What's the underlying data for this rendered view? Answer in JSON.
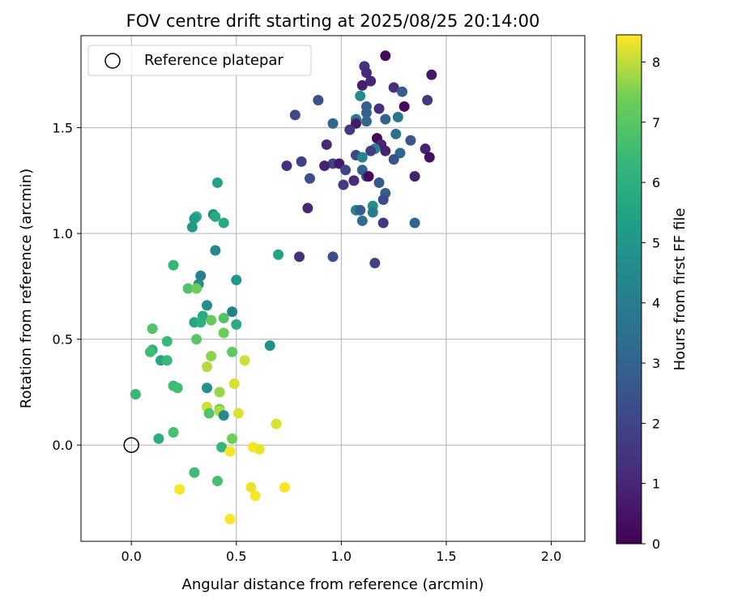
{
  "chart_data": {
    "type": "scatter",
    "title": "FOV centre drift starting at 2025/08/25 20:14:00",
    "xlabel": "Angular distance from reference (arcmin)",
    "ylabel": "Rotation from reference (arcmin)",
    "xlim": [
      -0.24,
      2.16
    ],
    "ylim": [
      -0.455,
      1.935
    ],
    "xticks": [
      0.0,
      0.5,
      1.0,
      1.5,
      2.0
    ],
    "xtick_labels": [
      "0.0",
      "0.5",
      "1.0",
      "1.5",
      "2.0"
    ],
    "yticks": [
      0.0,
      0.5,
      1.0,
      1.5
    ],
    "ytick_labels": [
      "0.0",
      "0.5",
      "1.0",
      "1.5"
    ],
    "grid": true,
    "legend": {
      "position": "top-left",
      "entries": [
        "Reference platepar"
      ]
    },
    "reference_point": {
      "x": 0.0,
      "y": 0.0,
      "label": "Reference platepar"
    },
    "colorbar": {
      "label": "Hours from first FF file",
      "colormap": "viridis",
      "range": [
        0,
        8.45
      ],
      "ticks": [
        0,
        1,
        2,
        3,
        4,
        5,
        6,
        7,
        8
      ],
      "tick_labels": [
        "0",
        "1",
        "2",
        "3",
        "4",
        "5",
        "6",
        "7",
        "8"
      ]
    },
    "points": [
      {
        "x": 1.21,
        "y": 1.84,
        "c": 0.2
      },
      {
        "x": 1.43,
        "y": 1.75,
        "c": 0.6
      },
      {
        "x": 1.11,
        "y": 1.79,
        "c": 1.4
      },
      {
        "x": 1.12,
        "y": 1.76,
        "c": 1.2
      },
      {
        "x": 1.14,
        "y": 1.72,
        "c": 1.0
      },
      {
        "x": 1.1,
        "y": 1.7,
        "c": 0.8
      },
      {
        "x": 1.25,
        "y": 1.69,
        "c": 1.3
      },
      {
        "x": 1.29,
        "y": 1.67,
        "c": 2.8
      },
      {
        "x": 1.09,
        "y": 1.65,
        "c": 4.6
      },
      {
        "x": 1.41,
        "y": 1.63,
        "c": 1.5
      },
      {
        "x": 0.89,
        "y": 1.63,
        "c": 2.4
      },
      {
        "x": 1.12,
        "y": 1.6,
        "c": 2.8
      },
      {
        "x": 1.3,
        "y": 1.6,
        "c": 0.3
      },
      {
        "x": 1.18,
        "y": 1.59,
        "c": 1.3
      },
      {
        "x": 0.78,
        "y": 1.56,
        "c": 2.2
      },
      {
        "x": 1.12,
        "y": 1.57,
        "c": 3.0
      },
      {
        "x": 1.21,
        "y": 1.54,
        "c": 3.0
      },
      {
        "x": 1.27,
        "y": 1.55,
        "c": 3.7
      },
      {
        "x": 1.07,
        "y": 1.54,
        "c": 3.9
      },
      {
        "x": 1.12,
        "y": 1.53,
        "c": 3.1
      },
      {
        "x": 0.96,
        "y": 1.52,
        "c": 3.2
      },
      {
        "x": 1.07,
        "y": 1.52,
        "c": 0.7
      },
      {
        "x": 1.04,
        "y": 1.49,
        "c": 1.6
      },
      {
        "x": 1.26,
        "y": 1.47,
        "c": 3.5
      },
      {
        "x": 1.33,
        "y": 1.44,
        "c": 2.6
      },
      {
        "x": 1.17,
        "y": 1.45,
        "c": 0.2
      },
      {
        "x": 1.19,
        "y": 1.42,
        "c": 1.0
      },
      {
        "x": 1.16,
        "y": 1.4,
        "c": 4.2
      },
      {
        "x": 1.14,
        "y": 1.39,
        "c": 1.7
      },
      {
        "x": 1.21,
        "y": 1.39,
        "c": 0.9
      },
      {
        "x": 1.4,
        "y": 1.4,
        "c": 0.9
      },
      {
        "x": 0.93,
        "y": 1.42,
        "c": 1.1
      },
      {
        "x": 1.28,
        "y": 1.38,
        "c": 3.2
      },
      {
        "x": 1.07,
        "y": 1.37,
        "c": 2.0
      },
      {
        "x": 1.42,
        "y": 1.36,
        "c": 0.4
      },
      {
        "x": 1.25,
        "y": 1.35,
        "c": 2.4
      },
      {
        "x": 1.1,
        "y": 1.36,
        "c": 4.3
      },
      {
        "x": 0.96,
        "y": 1.33,
        "c": 2.0
      },
      {
        "x": 0.99,
        "y": 1.33,
        "c": 0.6
      },
      {
        "x": 0.92,
        "y": 1.32,
        "c": 0.9
      },
      {
        "x": 0.81,
        "y": 1.34,
        "c": 1.9
      },
      {
        "x": 0.74,
        "y": 1.32,
        "c": 1.3
      },
      {
        "x": 1.02,
        "y": 1.3,
        "c": 2.0
      },
      {
        "x": 1.1,
        "y": 1.3,
        "c": 3.0
      },
      {
        "x": 1.12,
        "y": 1.27,
        "c": 2.5
      },
      {
        "x": 1.13,
        "y": 1.27,
        "c": 0.3
      },
      {
        "x": 1.35,
        "y": 1.27,
        "c": 0.8
      },
      {
        "x": 0.85,
        "y": 1.26,
        "c": 2.3
      },
      {
        "x": 1.06,
        "y": 1.25,
        "c": 1.2
      },
      {
        "x": 1.18,
        "y": 1.24,
        "c": 2.7
      },
      {
        "x": 1.01,
        "y": 1.23,
        "c": 1.7
      },
      {
        "x": 1.21,
        "y": 1.19,
        "c": 2.8
      },
      {
        "x": 1.2,
        "y": 1.16,
        "c": 2.1
      },
      {
        "x": 1.15,
        "y": 1.13,
        "c": 4.7
      },
      {
        "x": 1.07,
        "y": 1.11,
        "c": 4.3
      },
      {
        "x": 1.09,
        "y": 1.11,
        "c": 2.8
      },
      {
        "x": 1.15,
        "y": 1.1,
        "c": 3.9
      },
      {
        "x": 0.84,
        "y": 1.12,
        "c": 1.0
      },
      {
        "x": 1.1,
        "y": 1.06,
        "c": 3.4
      },
      {
        "x": 1.2,
        "y": 1.05,
        "c": 1.5
      },
      {
        "x": 1.35,
        "y": 1.05,
        "c": 3.1
      },
      {
        "x": 0.96,
        "y": 0.89,
        "c": 2.3
      },
      {
        "x": 0.8,
        "y": 0.89,
        "c": 1.3
      },
      {
        "x": 1.16,
        "y": 0.86,
        "c": 1.9
      },
      {
        "x": 0.41,
        "y": 1.24,
        "c": 5.4
      },
      {
        "x": 0.39,
        "y": 1.09,
        "c": 4.5
      },
      {
        "x": 0.31,
        "y": 1.08,
        "c": 6.0
      },
      {
        "x": 0.4,
        "y": 1.08,
        "c": 5.8
      },
      {
        "x": 0.3,
        "y": 1.07,
        "c": 5.2
      },
      {
        "x": 0.44,
        "y": 1.05,
        "c": 5.8
      },
      {
        "x": 0.29,
        "y": 1.03,
        "c": 5.1
      },
      {
        "x": 0.4,
        "y": 0.92,
        "c": 4.4
      },
      {
        "x": 0.7,
        "y": 0.9,
        "c": 5.5
      },
      {
        "x": 0.2,
        "y": 0.85,
        "c": 6.3
      },
      {
        "x": 0.33,
        "y": 0.8,
        "c": 4.2
      },
      {
        "x": 0.5,
        "y": 0.78,
        "c": 5.0
      },
      {
        "x": 0.32,
        "y": 0.76,
        "c": 4.6
      },
      {
        "x": 0.27,
        "y": 0.74,
        "c": 6.8
      },
      {
        "x": 0.31,
        "y": 0.74,
        "c": 7.3
      },
      {
        "x": 0.36,
        "y": 0.66,
        "c": 4.7
      },
      {
        "x": 0.48,
        "y": 0.63,
        "c": 4.1
      },
      {
        "x": 0.34,
        "y": 0.61,
        "c": 5.7
      },
      {
        "x": 0.3,
        "y": 0.58,
        "c": 5.5
      },
      {
        "x": 0.38,
        "y": 0.59,
        "c": 7.2
      },
      {
        "x": 0.44,
        "y": 0.6,
        "c": 6.9
      },
      {
        "x": 0.33,
        "y": 0.58,
        "c": 6.0
      },
      {
        "x": 0.5,
        "y": 0.57,
        "c": 5.8
      },
      {
        "x": 0.1,
        "y": 0.55,
        "c": 6.9
      },
      {
        "x": 0.44,
        "y": 0.53,
        "c": 7.3
      },
      {
        "x": 0.31,
        "y": 0.5,
        "c": 7.0
      },
      {
        "x": 0.17,
        "y": 0.49,
        "c": 6.4
      },
      {
        "x": 0.66,
        "y": 0.47,
        "c": 4.8
      },
      {
        "x": 0.1,
        "y": 0.45,
        "c": 5.9
      },
      {
        "x": 0.09,
        "y": 0.44,
        "c": 6.5
      },
      {
        "x": 0.48,
        "y": 0.44,
        "c": 7.1
      },
      {
        "x": 0.38,
        "y": 0.42,
        "c": 7.6
      },
      {
        "x": 0.14,
        "y": 0.4,
        "c": 5.6
      },
      {
        "x": 0.17,
        "y": 0.4,
        "c": 6.4
      },
      {
        "x": 0.54,
        "y": 0.4,
        "c": 8.1
      },
      {
        "x": 0.36,
        "y": 0.37,
        "c": 7.9
      },
      {
        "x": 0.49,
        "y": 0.29,
        "c": 8.2
      },
      {
        "x": 0.2,
        "y": 0.28,
        "c": 6.5
      },
      {
        "x": 0.22,
        "y": 0.27,
        "c": 6.6
      },
      {
        "x": 0.36,
        "y": 0.27,
        "c": 4.8
      },
      {
        "x": 0.42,
        "y": 0.25,
        "c": 7.7
      },
      {
        "x": 0.02,
        "y": 0.24,
        "c": 6.4
      },
      {
        "x": 0.36,
        "y": 0.18,
        "c": 8.1
      },
      {
        "x": 0.42,
        "y": 0.17,
        "c": 7.4
      },
      {
        "x": 0.42,
        "y": 0.16,
        "c": 7.9
      },
      {
        "x": 0.37,
        "y": 0.15,
        "c": 6.9
      },
      {
        "x": 0.44,
        "y": 0.14,
        "c": 4.6
      },
      {
        "x": 0.51,
        "y": 0.15,
        "c": 8.2
      },
      {
        "x": 0.69,
        "y": 0.1,
        "c": 8.2
      },
      {
        "x": 0.2,
        "y": 0.06,
        "c": 6.7
      },
      {
        "x": 0.13,
        "y": 0.03,
        "c": 5.9
      },
      {
        "x": 0.48,
        "y": 0.03,
        "c": 7.4
      },
      {
        "x": 0.58,
        "y": -0.01,
        "c": 8.4
      },
      {
        "x": 0.61,
        "y": -0.02,
        "c": 8.3
      },
      {
        "x": 0.43,
        "y": -0.01,
        "c": 6.3
      },
      {
        "x": 0.47,
        "y": -0.03,
        "c": 8.4
      },
      {
        "x": 0.3,
        "y": -0.13,
        "c": 6.5
      },
      {
        "x": 0.41,
        "y": -0.17,
        "c": 6.7
      },
      {
        "x": 0.57,
        "y": -0.2,
        "c": 8.3
      },
      {
        "x": 0.73,
        "y": -0.2,
        "c": 8.4
      },
      {
        "x": 0.23,
        "y": -0.21,
        "c": 8.4
      },
      {
        "x": 0.59,
        "y": -0.24,
        "c": 8.4
      },
      {
        "x": 0.47,
        "y": -0.35,
        "c": 8.4
      }
    ]
  }
}
